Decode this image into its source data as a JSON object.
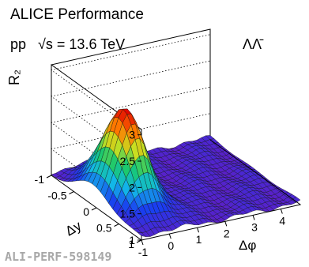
{
  "chart_data": {
    "type": "surface",
    "title": "ALICE Performance",
    "subtitle": "pp   √s = 13.6 TeV",
    "pair_label": "ΛΛ̄",
    "zlabel": "R₂",
    "xlabel": "Δφ",
    "ylabel": "Δy",
    "xlim": [
      -1,
      4.7
    ],
    "ylim": [
      -1,
      1
    ],
    "zlim": [
      1,
      3.1
    ],
    "x_ticks": [
      "-1",
      "0",
      "1",
      "2",
      "3",
      "4"
    ],
    "y_ticks": [
      "-1",
      "-0.5",
      "0",
      "0.5",
      "1"
    ],
    "z_ticks": [
      "1",
      "1.5",
      "2",
      "2.5",
      "3"
    ],
    "peak": {
      "x": 0.0,
      "y": 0.0,
      "z": 2.75
    },
    "baseline": 1.05,
    "grid": true,
    "colormap": [
      "#5a20c8",
      "#1a3cf0",
      "#12b8e8",
      "#18c870",
      "#c8e020",
      "#ff7a00",
      "#e00000"
    ]
  },
  "watermark": "ALI-PERF-598149"
}
